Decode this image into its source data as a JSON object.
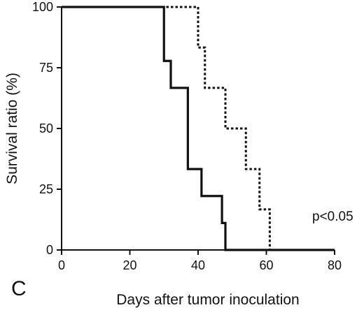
{
  "chart_data": {
    "type": "line",
    "step": true,
    "title": "",
    "xlabel": "Days after tumor inoculation",
    "ylabel": "Survival ratio (%)",
    "xlim": [
      0,
      80
    ],
    "ylim": [
      0,
      100
    ],
    "xticks": [
      "0",
      "20",
      "40",
      "60",
      "80"
    ],
    "yticks": [
      "0",
      "25",
      "50",
      "75",
      "100"
    ],
    "grid": false,
    "panel_label": "C",
    "annotation": "p<0.05",
    "series": [
      {
        "style": "solid",
        "x": [
          0,
          30,
          32,
          37,
          41,
          47,
          48,
          80
        ],
        "y": [
          100,
          77.8,
          66.7,
          33.3,
          22.2,
          11.1,
          0,
          0
        ]
      },
      {
        "style": "dotted",
        "x": [
          0,
          40,
          42,
          48,
          54,
          58,
          61,
          80
        ],
        "y": [
          100,
          83.3,
          66.7,
          50,
          33.3,
          16.7,
          0,
          0
        ]
      }
    ]
  }
}
